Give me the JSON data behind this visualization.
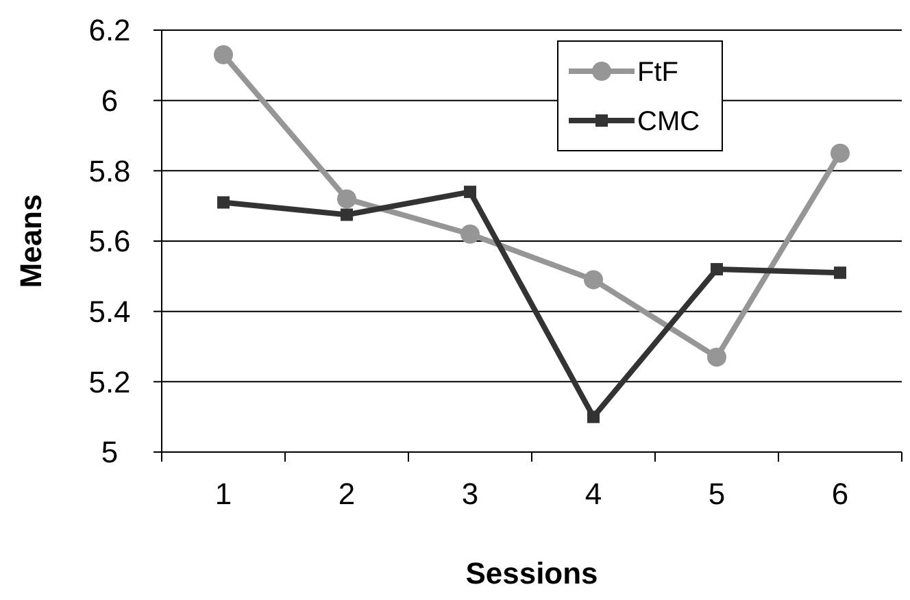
{
  "chart_data": {
    "type": "line",
    "xlabel": "Sessions",
    "ylabel": "Means",
    "categories": [
      "1",
      "2",
      "3",
      "4",
      "5",
      "6"
    ],
    "series": [
      {
        "name": "FtF",
        "color": "#969696",
        "marker": "circle",
        "values": [
          6.13,
          5.72,
          5.62,
          5.49,
          5.27,
          5.85
        ]
      },
      {
        "name": "CMC",
        "color": "#333333",
        "marker": "square",
        "values": [
          5.71,
          5.675,
          5.74,
          5.1,
          5.52,
          5.51
        ]
      }
    ],
    "ylim": [
      5,
      6.2
    ],
    "yticks": [
      5,
      5.2,
      5.4,
      5.6,
      5.8,
      6,
      6.2
    ],
    "grid": "y",
    "legend": "top right"
  }
}
